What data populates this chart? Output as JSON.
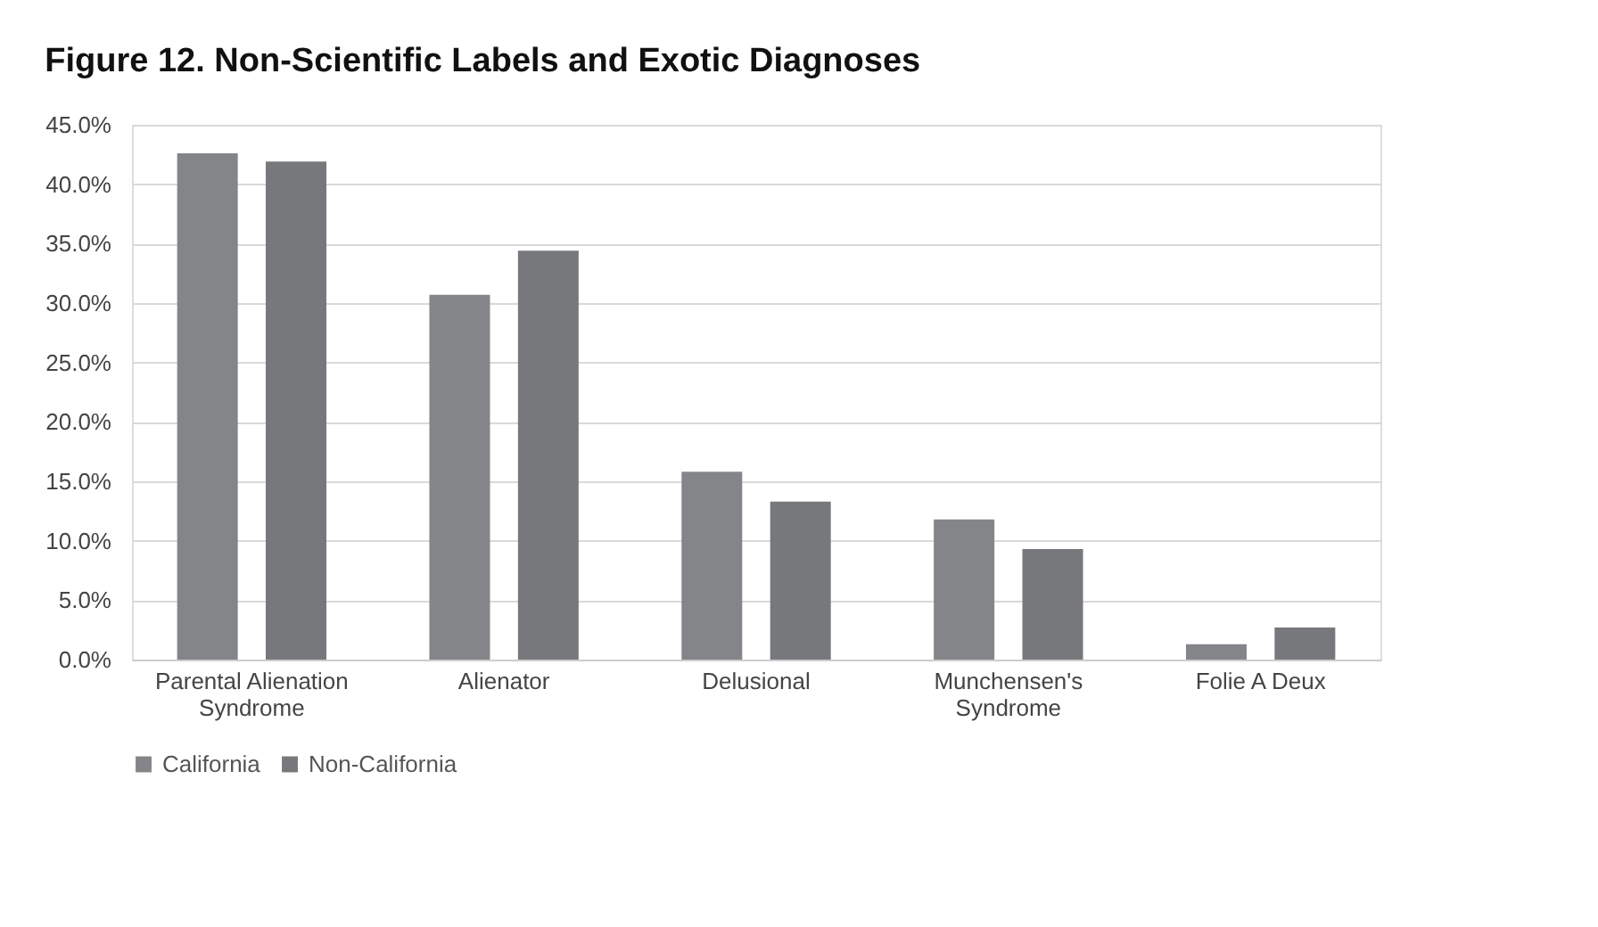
{
  "chart_data": {
    "type": "bar",
    "title": "Figure 12.  Non-Scientific Labels and Exotic Diagnoses",
    "categories": [
      "Parental Alienation Syndrome",
      "Alienator",
      "Delusional",
      "Munchensen's Syndrome",
      "Folie A Deux"
    ],
    "series": [
      {
        "name": "California",
        "color": "#848589",
        "values": [
          42.6,
          30.7,
          15.8,
          11.8,
          1.3
        ]
      },
      {
        "name": "Non-California",
        "color": "#77787c",
        "values": [
          41.9,
          34.4,
          13.3,
          9.3,
          2.7
        ]
      }
    ],
    "ylim": [
      0,
      45
    ],
    "yticks": [
      {
        "value": 0,
        "label": "0.0%"
      },
      {
        "value": 5,
        "label": "5.0%"
      },
      {
        "value": 10,
        "label": "10.0%"
      },
      {
        "value": 15,
        "label": "15.0%"
      },
      {
        "value": 20,
        "label": "20.0%"
      },
      {
        "value": 25,
        "label": "25.0%"
      },
      {
        "value": 30,
        "label": "30.0%"
      },
      {
        "value": 35,
        "label": "35.0%"
      },
      {
        "value": 40,
        "label": "40.0%"
      },
      {
        "value": 45,
        "label": "45.0%"
      }
    ],
    "grid": "y",
    "legend": "bottom"
  }
}
